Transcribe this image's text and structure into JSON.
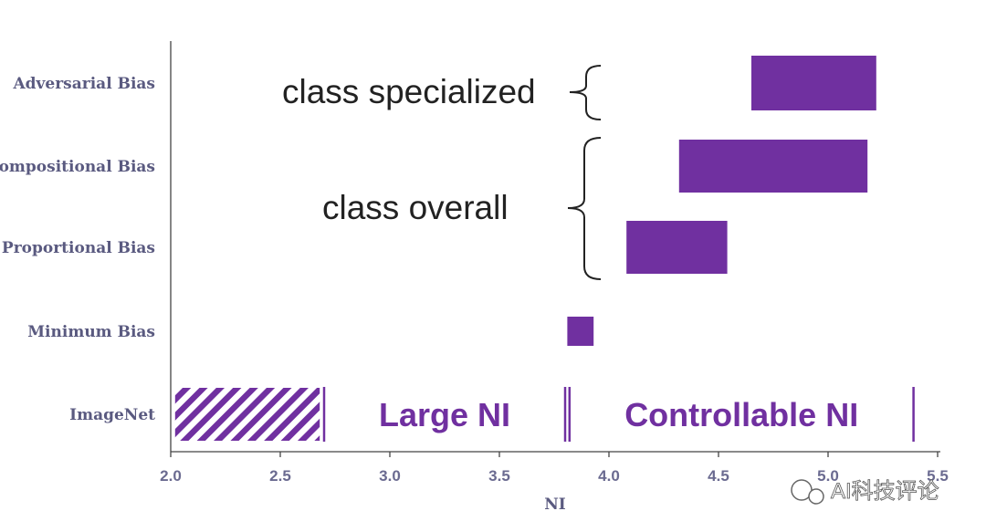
{
  "chart_data": {
    "type": "bar",
    "subtype": "floating-horizontal-range",
    "xlabel": "NI",
    "xlim": [
      2.0,
      5.5
    ],
    "xticks": [
      "2.0",
      "2.5",
      "3.0",
      "3.5",
      "4.0",
      "4.5",
      "5.0",
      "5.5"
    ],
    "categories": [
      "Adversarial Bias",
      "Compositional Bias",
      "Proportional Bias",
      "Minimum Bias",
      "ImageNet"
    ],
    "ranges": [
      {
        "category": "Adversarial Bias",
        "start": 4.65,
        "end": 5.22
      },
      {
        "category": "Compositional Bias",
        "start": 4.32,
        "end": 5.18
      },
      {
        "category": "Proportional Bias",
        "start": 4.08,
        "end": 4.54
      },
      {
        "category": "Minimum Bias",
        "start": 3.81,
        "end": 3.93
      },
      {
        "category": "ImageNet",
        "start": 2.02,
        "end": 2.68,
        "pattern": "hatched"
      }
    ],
    "color": "#7030a0",
    "annotations": [
      {
        "text": "class specialized",
        "bracket_categories": [
          "Adversarial Bias"
        ]
      },
      {
        "text": "class overall",
        "bracket_categories": [
          "Compositional Bias",
          "Proportional Bias"
        ]
      }
    ],
    "regions": [
      {
        "text": "Large NI",
        "start": 2.7,
        "end": 3.8
      },
      {
        "text": "Controllable NI",
        "start": 3.82,
        "end": 5.39
      }
    ]
  },
  "watermark": "AI科技评论"
}
